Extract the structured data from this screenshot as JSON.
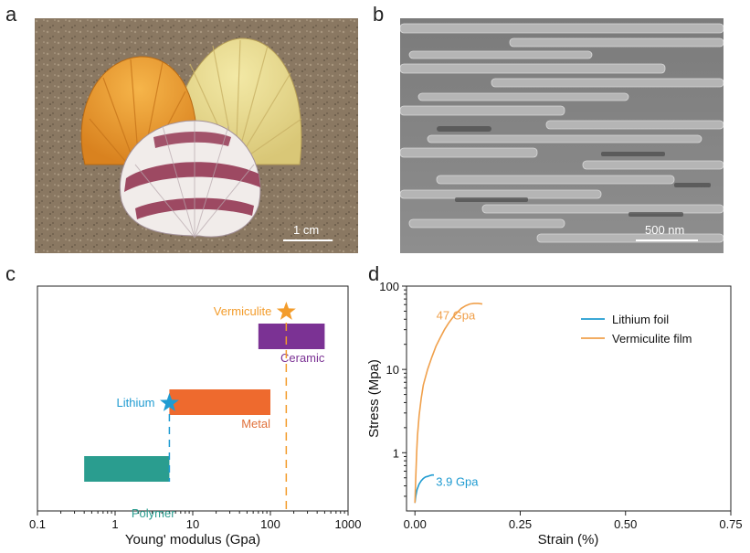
{
  "panels": {
    "a": {
      "letter": "a",
      "scale_label": "1 cm"
    },
    "b": {
      "letter": "b",
      "scale_label": "500 nm"
    },
    "c": {
      "letter": "c"
    },
    "d": {
      "letter": "d"
    }
  },
  "chart_data": [
    {
      "type": "bar",
      "panel": "c",
      "xscale": "log",
      "xlabel": "Young' modulus (Gpa)",
      "ylabel": "",
      "xlim": [
        0.1,
        1000
      ],
      "xticks": [
        0.1,
        1,
        10,
        100,
        1000
      ],
      "xtick_labels": [
        "0.1",
        "1",
        "10",
        "100",
        "1000"
      ],
      "bars": [
        {
          "name": "Polymer",
          "range": [
            0.4,
            5
          ],
          "color": "#2a9d8f",
          "label_color": "#2a9d8f"
        },
        {
          "name": "Metal",
          "range": [
            5,
            100
          ],
          "color": "#ee6a2e",
          "label_color": "#e0703a"
        },
        {
          "name": "Ceramic",
          "range": [
            70,
            500
          ],
          "color": "#7b3294",
          "label_color": "#7b3294"
        }
      ],
      "markers": [
        {
          "name": "Vermiculite",
          "value": 160,
          "color": "#f39c2b",
          "shape": "star"
        },
        {
          "name": "Lithium",
          "value": 5,
          "color": "#1f9bd1",
          "shape": "star"
        }
      ]
    },
    {
      "type": "line",
      "panel": "d",
      "xlabel": "Strain (%)",
      "ylabel": "Stress (Mpa)",
      "xlim": [
        -0.02,
        0.75
      ],
      "ylim": [
        0.2,
        100
      ],
      "yscale": "log",
      "xticks": [
        0,
        0.25,
        0.5,
        0.75
      ],
      "xtick_labels": [
        "0.00",
        "0.25",
        "0.50",
        "0.75"
      ],
      "yticks": [
        1,
        10,
        100
      ],
      "ytick_labels": [
        "1",
        "10",
        "100"
      ],
      "legend": "top-right",
      "series": [
        {
          "name": "Lithium foil",
          "color": "#1f9bd1",
          "annotation": "3.9 Gpa",
          "x": [
            0.0,
            0.002,
            0.005,
            0.01,
            0.015,
            0.02,
            0.025,
            0.03,
            0.035,
            0.04,
            0.045
          ],
          "y": [
            0.25,
            0.3,
            0.36,
            0.42,
            0.46,
            0.49,
            0.51,
            0.52,
            0.53,
            0.54,
            0.54
          ]
        },
        {
          "name": "Vermiculite film",
          "color": "#f0a04b",
          "annotation": "47 Gpa",
          "x": [
            0.0,
            0.002,
            0.004,
            0.006,
            0.01,
            0.015,
            0.02,
            0.03,
            0.04,
            0.05,
            0.06,
            0.07,
            0.08,
            0.09,
            0.1,
            0.11,
            0.12,
            0.13,
            0.14,
            0.15,
            0.16
          ],
          "y": [
            0.25,
            0.5,
            1.0,
            1.6,
            2.8,
            4.5,
            6.5,
            10,
            14,
            19,
            24,
            30,
            36,
            42,
            48,
            54,
            58,
            61,
            62,
            62,
            61
          ]
        }
      ]
    }
  ]
}
